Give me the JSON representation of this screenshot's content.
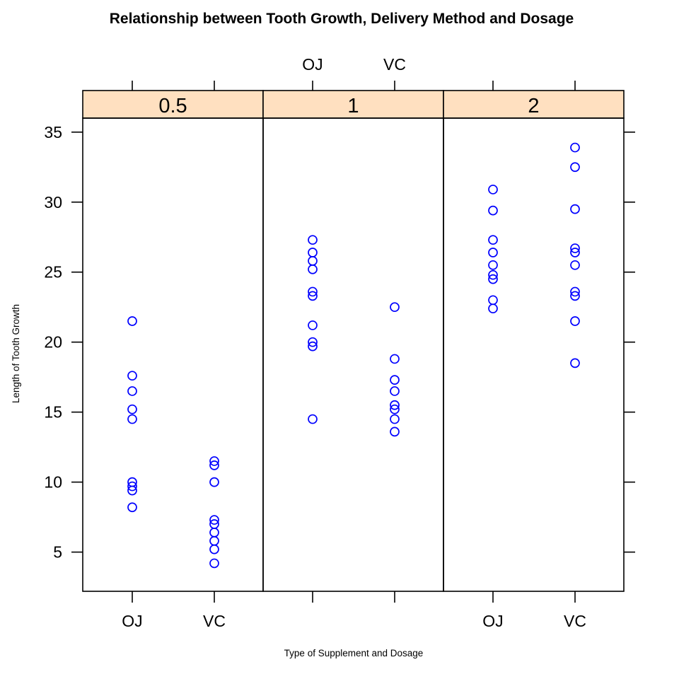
{
  "chart_data": {
    "type": "scatter",
    "title": "Relationship between Tooth Growth, Delivery Method and Dosage",
    "xlabel": "Type of Supplement and Dosage",
    "ylabel": "Length of Tooth Growth",
    "categories": [
      "OJ",
      "VC"
    ],
    "yticks": [
      5,
      10,
      15,
      20,
      25,
      30,
      35
    ],
    "ylim": [
      2.2,
      36.0
    ],
    "point_color": "#0000ff",
    "strip_color": "#ffe0c0",
    "panels": [
      {
        "label": "0.5",
        "series": [
          {
            "x": "OJ",
            "values": [
              21.5,
              17.6,
              16.5,
              15.2,
              14.5,
              10.0,
              9.7,
              9.4,
              8.2
            ]
          },
          {
            "x": "VC",
            "values": [
              11.5,
              11.2,
              10.0,
              7.3,
              7.0,
              6.4,
              5.8,
              5.2,
              4.2
            ]
          }
        ]
      },
      {
        "label": "1",
        "series": [
          {
            "x": "OJ",
            "values": [
              27.3,
              26.4,
              25.8,
              25.2,
              23.6,
              23.3,
              21.2,
              20.0,
              19.7,
              14.5
            ]
          },
          {
            "x": "VC",
            "values": [
              22.5,
              18.8,
              17.3,
              16.5,
              15.5,
              15.2,
              14.5,
              13.6
            ]
          }
        ]
      },
      {
        "label": "2",
        "series": [
          {
            "x": "OJ",
            "values": [
              30.9,
              29.4,
              27.3,
              26.4,
              25.5,
              24.8,
              24.5,
              23.0,
              22.4
            ]
          },
          {
            "x": "VC",
            "values": [
              33.9,
              32.5,
              29.5,
              26.7,
              26.4,
              25.5,
              23.6,
              23.3,
              21.5,
              18.5
            ]
          }
        ]
      }
    ]
  }
}
